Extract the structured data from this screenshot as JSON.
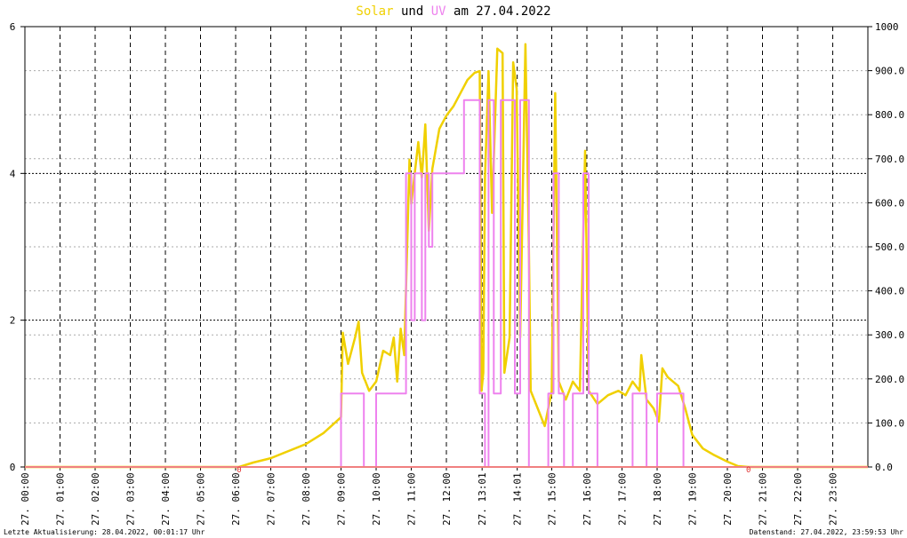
{
  "chart_data": {
    "type": "line",
    "title_parts": [
      "und",
      "am 27.04.2022"
    ],
    "footer_left": "Letzte Aktualisierung: 28.04.2022, 00:01:17 Uhr",
    "footer_right": "Datenstand: 27.04.2022, 23:59:53 Uhr",
    "xlim": [
      0,
      24
    ],
    "xticks": [
      {
        "value": 0,
        "label": "27. 00:00"
      },
      {
        "value": 1,
        "label": "27. 01:00"
      },
      {
        "value": 2,
        "label": "27. 02:00"
      },
      {
        "value": 3,
        "label": "27. 03:00"
      },
      {
        "value": 4,
        "label": "27. 04:00"
      },
      {
        "value": 5,
        "label": "27. 05:00"
      },
      {
        "value": 6,
        "label": "27. 06:00"
      },
      {
        "value": 7,
        "label": "27. 07:00"
      },
      {
        "value": 8,
        "label": "27. 08:00"
      },
      {
        "value": 9,
        "label": "27. 09:00"
      },
      {
        "value": 10,
        "label": "27. 10:00"
      },
      {
        "value": 11,
        "label": "27. 11:00"
      },
      {
        "value": 12,
        "label": "27. 12:00"
      },
      {
        "value": 13.017,
        "label": "27. 13:01"
      },
      {
        "value": 14.017,
        "label": "27. 14:01"
      },
      {
        "value": 15,
        "label": "27. 15:00"
      },
      {
        "value": 16,
        "label": "27. 16:00"
      },
      {
        "value": 17,
        "label": "27. 17:00"
      },
      {
        "value": 18,
        "label": "27. 18:00"
      },
      {
        "value": 19,
        "label": "27. 19:00"
      },
      {
        "value": 20,
        "label": "27. 20:00"
      },
      {
        "value": 21,
        "label": "27. 21:00"
      },
      {
        "value": 22,
        "label": "27. 22:00"
      },
      {
        "value": 23,
        "label": "27. 23:00"
      }
    ],
    "ylim": [
      0,
      6
    ],
    "yticks": [
      0,
      2,
      4,
      6
    ],
    "y2lim": [
      0,
      1000
    ],
    "y2ticks": [
      {
        "value": 0,
        "label": "0.0"
      },
      {
        "value": 100,
        "label": "100.0"
      },
      {
        "value": 200,
        "label": "200.0"
      },
      {
        "value": 300,
        "label": "300.0"
      },
      {
        "value": 400,
        "label": "400.0"
      },
      {
        "value": 500,
        "label": "500.0"
      },
      {
        "value": 600,
        "label": "600.0"
      },
      {
        "value": 700,
        "label": "700.0"
      },
      {
        "value": 800,
        "label": "800.0"
      },
      {
        "value": 900,
        "label": "900.0"
      },
      {
        "value": 1000,
        "label": "1000"
      }
    ],
    "grid": true,
    "annotations": [
      {
        "text": "0",
        "x": 6.1
      },
      {
        "text": "0",
        "x": 20.6
      }
    ],
    "series": [
      {
        "name": "Solar",
        "color": "#f0d000",
        "axis": "y2",
        "x": [
          0,
          6.1,
          6.5,
          7.0,
          7.5,
          8.0,
          8.5,
          9.0,
          9.05,
          9.2,
          9.4,
          9.5,
          9.6,
          9.8,
          10.0,
          10.2,
          10.4,
          10.5,
          10.6,
          10.7,
          10.8,
          10.95,
          11.0,
          11.2,
          11.3,
          11.4,
          11.5,
          11.6,
          11.8,
          12.0,
          12.2,
          12.4,
          12.6,
          12.8,
          12.95,
          13.0,
          13.05,
          13.1,
          13.2,
          13.3,
          13.45,
          13.6,
          13.65,
          13.8,
          13.9,
          14.0,
          14.1,
          14.25,
          14.35,
          14.4,
          14.6,
          14.8,
          15.0,
          15.1,
          15.2,
          15.4,
          15.6,
          15.8,
          15.95,
          16.05,
          16.3,
          16.6,
          16.9,
          17.1,
          17.3,
          17.5,
          17.55,
          17.7,
          17.9,
          18.05,
          18.15,
          18.3,
          18.6,
          18.8,
          19.0,
          19.3,
          19.6,
          20.0,
          20.3,
          20.6,
          24
        ],
        "values": [
          0,
          0,
          10,
          20,
          36,
          52,
          77,
          113,
          305,
          234,
          294,
          330,
          214,
          173,
          194,
          264,
          254,
          294,
          194,
          314,
          254,
          698,
          597,
          738,
          657,
          778,
          536,
          677,
          768,
          798,
          819,
          849,
          879,
          895,
          899,
          173,
          214,
          657,
          899,
          577,
          950,
          940,
          214,
          294,
          919,
          859,
          294,
          960,
          496,
          173,
          133,
          93,
          173,
          849,
          194,
          153,
          194,
          173,
          718,
          173,
          143,
          163,
          173,
          163,
          194,
          173,
          254,
          153,
          133,
          103,
          224,
          204,
          184,
          133,
          73,
          42,
          28,
          12,
          2,
          0,
          0
        ]
      },
      {
        "name": "UV",
        "color": "#ee82ee",
        "axis": "y",
        "x": [
          0,
          9.0,
          9.0,
          9.65,
          9.65,
          10.0,
          10.0,
          10.85,
          10.85,
          11.0,
          11.0,
          11.1,
          11.1,
          11.3,
          11.3,
          11.4,
          11.4,
          11.5,
          11.5,
          11.6,
          11.6,
          12.5,
          12.5,
          12.95,
          12.95,
          13.1,
          13.1,
          13.2,
          13.2,
          13.35,
          13.35,
          13.55,
          13.55,
          13.95,
          13.95,
          14.1,
          14.1,
          14.35,
          14.35,
          14.9,
          14.9,
          15.05,
          15.05,
          15.2,
          15.2,
          15.35,
          15.35,
          15.6,
          15.6,
          15.9,
          15.9,
          16.05,
          16.05,
          16.3,
          16.3,
          17.3,
          17.3,
          17.7,
          17.7,
          18.0,
          18.0,
          18.75,
          18.75,
          24
        ],
        "values": [
          0,
          0,
          1,
          1,
          0,
          0,
          1,
          1,
          4,
          4,
          2,
          2,
          4,
          4,
          2,
          2,
          4,
          4,
          3,
          3,
          4,
          4,
          5,
          5,
          1,
          1,
          0,
          0,
          5,
          5,
          1,
          1,
          5,
          5,
          1,
          1,
          5,
          5,
          0,
          0,
          1,
          1,
          4,
          4,
          1,
          1,
          0,
          0,
          1,
          1,
          4,
          4,
          1,
          1,
          0,
          0,
          1,
          1,
          0,
          0,
          1,
          1,
          0,
          0
        ]
      }
    ]
  }
}
